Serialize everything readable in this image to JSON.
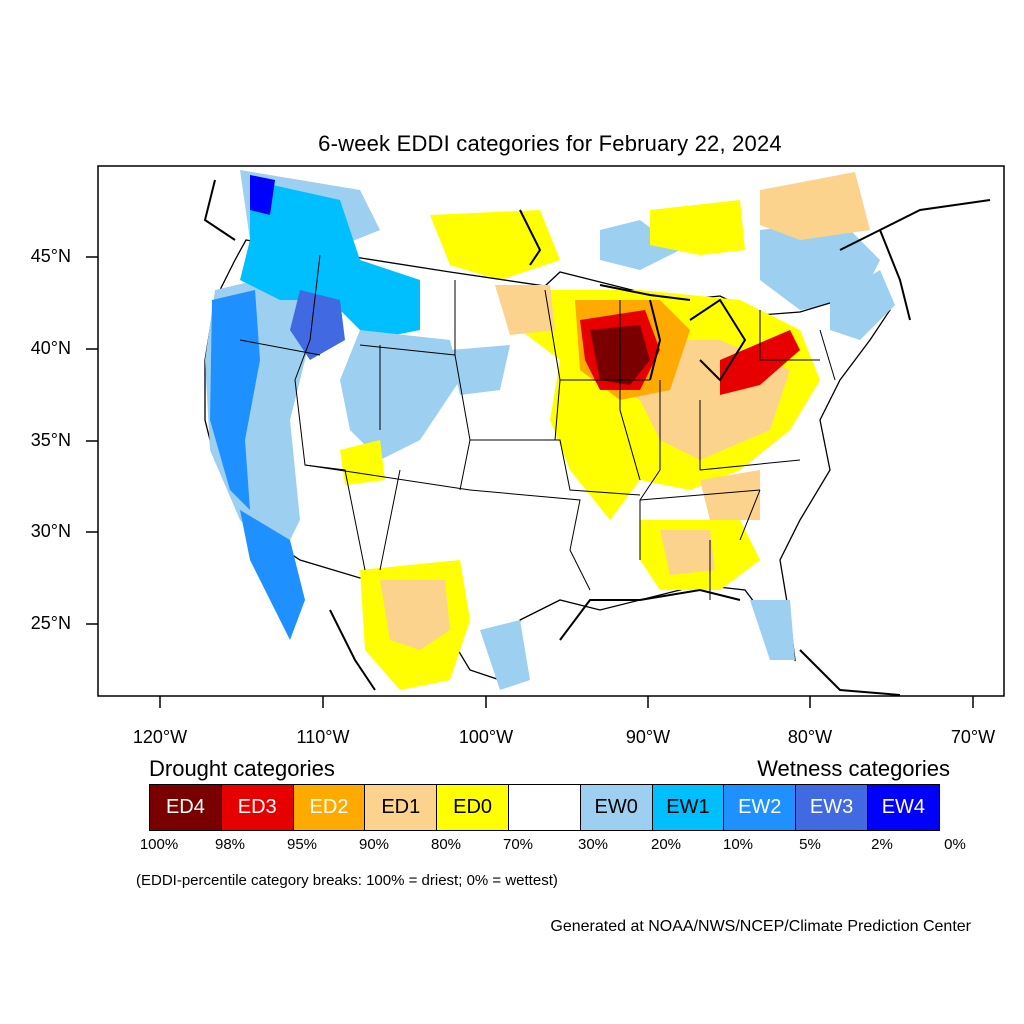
{
  "title": "6-week EDDI categories for February 22, 2024",
  "lat_labels": [
    "45°N",
    "40°N",
    "35°N",
    "30°N",
    "25°N"
  ],
  "lon_labels": [
    "120°W",
    "110°W",
    "100°W",
    "90°W",
    "80°W",
    "70°W"
  ],
  "legend": {
    "drought_heading": "Drought categories",
    "wetness_heading": "Wetness categories",
    "categories": [
      {
        "label": "ED4",
        "color": "#7a0000",
        "text_color": "#ffffff"
      },
      {
        "label": "ED3",
        "color": "#e60000",
        "text_color": "#ffffff"
      },
      {
        "label": "ED2",
        "color": "#ffaa00",
        "text_color": "#ffffff"
      },
      {
        "label": "ED1",
        "color": "#fcd38c",
        "text_color": "#000000"
      },
      {
        "label": "ED0",
        "color": "#ffff00",
        "text_color": "#000000"
      },
      {
        "label": "",
        "color": "#ffffff",
        "text_color": "#000000"
      },
      {
        "label": "EW0",
        "color": "#9ccff0",
        "text_color": "#000000"
      },
      {
        "label": "EW1",
        "color": "#00bfff",
        "text_color": "#000000"
      },
      {
        "label": "EW2",
        "color": "#1e90ff",
        "text_color": "#ffffff"
      },
      {
        "label": "EW3",
        "color": "#4169e1",
        "text_color": "#ffffff"
      },
      {
        "label": "EW4",
        "color": "#0000ff",
        "text_color": "#ffffff"
      }
    ],
    "breaks": [
      "100%",
      "98%",
      "95%",
      "90%",
      "80%",
      "70%",
      "30%",
      "20%",
      "10%",
      "5%",
      "2%",
      "0%"
    ]
  },
  "footnote": "(EDDI-percentile category breaks: 100% = driest; 0% = wettest)",
  "credit": "Generated at NOAA/NWS/NCEP/Climate Prediction Center"
}
